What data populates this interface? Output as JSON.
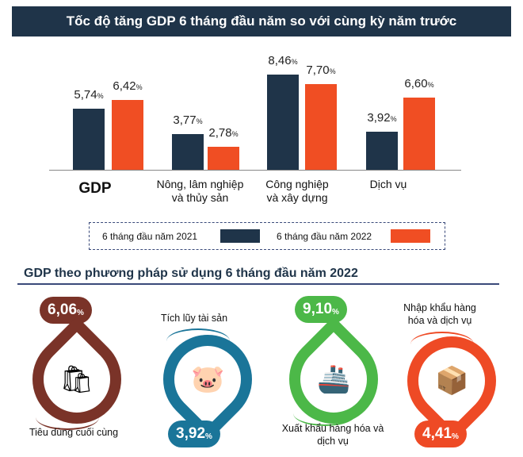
{
  "title": "Tốc độ tăng GDP 6 tháng đầu năm so với cùng kỳ năm trước",
  "chart_data": {
    "type": "bar",
    "title": "Tốc độ tăng GDP 6 tháng đầu năm so với cùng kỳ năm trước",
    "categories": [
      "GDP",
      "Nông, lâm nghiệp\nvà thủy sản",
      "Công nghiệp\nvà xây dựng",
      "Dịch vụ"
    ],
    "series": [
      {
        "name": "6 tháng đầu năm 2021",
        "values": [
          5.74,
          3.77,
          8.46,
          3.92
        ],
        "labels": [
          "5,74",
          "3,77",
          "8,46",
          "3,92"
        ],
        "color": "#1f3449"
      },
      {
        "name": "6 tháng đầu năm 2022",
        "values": [
          6.42,
          2.78,
          7.7,
          6.6
        ],
        "labels": [
          "6,42",
          "2,78",
          "7,70",
          "6,60"
        ],
        "color": "#f04e23"
      }
    ],
    "unit": "%",
    "legend": "bottom"
  },
  "section2": {
    "title": "GDP theo phương pháp sử dụng 6 tháng đầu năm 2022",
    "items": [
      {
        "label": "Tiêu dùng cuối cùng",
        "value": "6,06",
        "unit": "%",
        "color": "#7a3328",
        "icon": "shopping-bag-icon"
      },
      {
        "label": "Tích lũy tài sản",
        "value": "3,92",
        "unit": "%",
        "color": "#1a7599",
        "icon": "piggy-bank-icon"
      },
      {
        "label": "Xuất khẩu hàng hóa và dịch vụ",
        "value": "9,10",
        "unit": "%",
        "color": "#4cb848",
        "icon": "cargo-ship-icon"
      },
      {
        "label": "Nhập khẩu hàng hóa và dịch vụ",
        "value": "4,41",
        "unit": "%",
        "color": "#ee4a25",
        "icon": "scale-boxes-icon"
      }
    ]
  }
}
